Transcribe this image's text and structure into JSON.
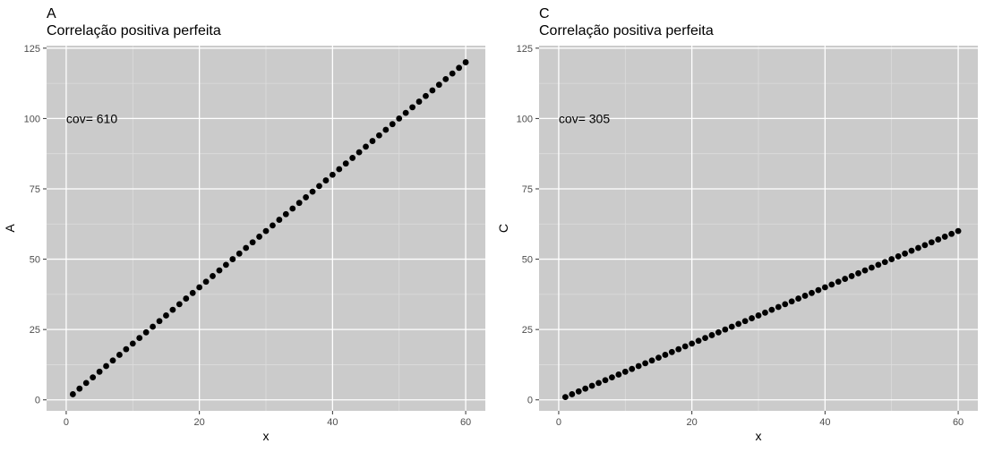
{
  "chart_data": [
    {
      "type": "scatter",
      "tag": "A",
      "title": "Correlação positiva perfeita",
      "xlabel": "x",
      "ylabel": "A",
      "annotation": "cov= 610",
      "annotation_at": {
        "x": 0,
        "y": 100
      },
      "xlim": [
        -2.95,
        62.95
      ],
      "ylim": [
        -3.9,
        125.9
      ],
      "x_ticks": [
        0,
        20,
        40,
        60
      ],
      "x_tick_labels": [
        "0",
        "20",
        "40",
        "60"
      ],
      "y_ticks": [
        0,
        25,
        50,
        75,
        100,
        125
      ],
      "y_tick_labels": [
        "0",
        "25",
        "50",
        "75",
        "100",
        "125"
      ],
      "grid": true,
      "x": [
        1,
        2,
        3,
        4,
        5,
        6,
        7,
        8,
        9,
        10,
        11,
        12,
        13,
        14,
        15,
        16,
        17,
        18,
        19,
        20,
        21,
        22,
        23,
        24,
        25,
        26,
        27,
        28,
        29,
        30,
        31,
        32,
        33,
        34,
        35,
        36,
        37,
        38,
        39,
        40,
        41,
        42,
        43,
        44,
        45,
        46,
        47,
        48,
        49,
        50,
        51,
        52,
        53,
        54,
        55,
        56,
        57,
        58,
        59,
        60
      ],
      "y": [
        2,
        4,
        6,
        8,
        10,
        12,
        14,
        16,
        18,
        20,
        22,
        24,
        26,
        28,
        30,
        32,
        34,
        36,
        38,
        40,
        42,
        44,
        46,
        48,
        50,
        52,
        54,
        56,
        58,
        60,
        62,
        64,
        66,
        68,
        70,
        72,
        74,
        76,
        78,
        80,
        82,
        84,
        86,
        88,
        90,
        92,
        94,
        96,
        98,
        100,
        102,
        104,
        106,
        108,
        110,
        112,
        114,
        116,
        118,
        120
      ]
    },
    {
      "type": "scatter",
      "tag": "C",
      "title": "Correlação positiva perfeita",
      "xlabel": "x",
      "ylabel": "C",
      "annotation": "cov= 305",
      "annotation_at": {
        "x": 0,
        "y": 100
      },
      "xlim": [
        -2.95,
        62.95
      ],
      "ylim": [
        -3.9,
        125.9
      ],
      "x_ticks": [
        0,
        20,
        40,
        60
      ],
      "x_tick_labels": [
        "0",
        "20",
        "40",
        "60"
      ],
      "y_ticks": [
        0,
        25,
        50,
        75,
        100,
        125
      ],
      "y_tick_labels": [
        "0",
        "25",
        "50",
        "75",
        "100",
        "125"
      ],
      "grid": true,
      "x": [
        1,
        2,
        3,
        4,
        5,
        6,
        7,
        8,
        9,
        10,
        11,
        12,
        13,
        14,
        15,
        16,
        17,
        18,
        19,
        20,
        21,
        22,
        23,
        24,
        25,
        26,
        27,
        28,
        29,
        30,
        31,
        32,
        33,
        34,
        35,
        36,
        37,
        38,
        39,
        40,
        41,
        42,
        43,
        44,
        45,
        46,
        47,
        48,
        49,
        50,
        51,
        52,
        53,
        54,
        55,
        56,
        57,
        58,
        59,
        60
      ],
      "y": [
        1,
        2,
        3,
        4,
        5,
        6,
        7,
        8,
        9,
        10,
        11,
        12,
        13,
        14,
        15,
        16,
        17,
        18,
        19,
        20,
        21,
        22,
        23,
        24,
        25,
        26,
        27,
        28,
        29,
        30,
        31,
        32,
        33,
        34,
        35,
        36,
        37,
        38,
        39,
        40,
        41,
        42,
        43,
        44,
        45,
        46,
        47,
        48,
        49,
        50,
        51,
        52,
        53,
        54,
        55,
        56,
        57,
        58,
        59,
        60
      ]
    }
  ],
  "colors": {
    "panel_background": "#cbcbcb",
    "grid_major": "#ffffff",
    "grid_minor": "#dcdcdc",
    "points": "#000000",
    "text": "#000000",
    "tick_text": "#4d4d4d"
  }
}
